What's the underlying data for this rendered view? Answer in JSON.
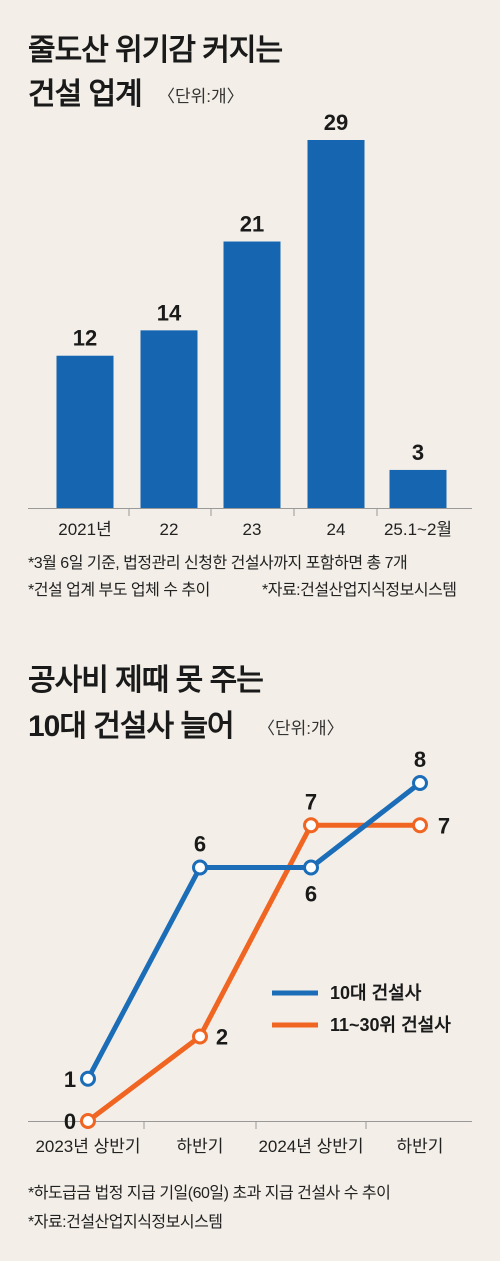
{
  "chart1": {
    "title_line1": "줄도산 위기감 커지는",
    "title_line2": "건설 업계",
    "unit": "〈단위:개〉",
    "note1": "*3월 6일 기준, 법정관리 신청한 건설사까지 포함하면 총 7개",
    "note2": "*건설 업계 부도 업체 수 추이",
    "source": "*자료:건설산업지식정보시스템",
    "colors": {
      "bar": "#1565b0",
      "axis": "#999999"
    },
    "chart_data": {
      "type": "bar",
      "categories": [
        "2021년",
        "22",
        "23",
        "24",
        "25.1~2월"
      ],
      "values": [
        12,
        14,
        21,
        29,
        3
      ],
      "title": "줄도산 위기감 커지는 건설 업계",
      "ylim": [
        0,
        29
      ]
    }
  },
  "chart2": {
    "title_line1": "공사비 제때 못 주는",
    "title_line2": "10대 건설사 늘어",
    "unit": "〈단위:개〉",
    "note1": "*하도급금 법정 지급 기일(60일) 초과 지급 건설사 수 추이",
    "source": "*자료:건설산업지식정보시스템",
    "colors": {
      "series1": "#1b6db8",
      "series2": "#f06522",
      "axis": "#999999"
    },
    "chart_data": {
      "type": "line",
      "categories": [
        "2023년  상반기",
        "하반기",
        "2024년  상반기",
        "하반기"
      ],
      "series": [
        {
          "name": "10대 건설사",
          "values": [
            1,
            6,
            6,
            8
          ]
        },
        {
          "name": "11~30위 건설사",
          "values": [
            0,
            2,
            7,
            7
          ]
        }
      ],
      "title": "공사비 제때 못 주는 10대 건설사 늘어",
      "ylim": [
        0,
        8
      ],
      "legend": "right"
    }
  }
}
